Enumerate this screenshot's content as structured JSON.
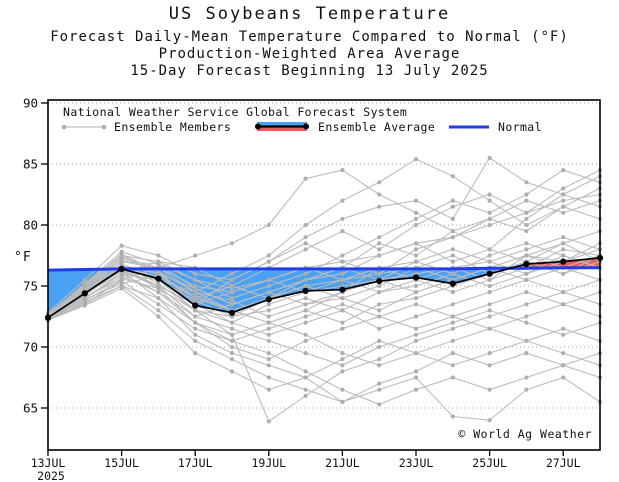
{
  "header": {
    "title": "US Soybeans Temperature",
    "subtitle1": "Forecast Daily-Mean Temperature Compared to Normal (°F)",
    "subtitle2": "Production-Weighted Area Average",
    "subtitle3": "15-Day Forecast Beginning 13 July 2025"
  },
  "legend": {
    "source": "National Weather Service Global Forecast System",
    "ensemble_members": "Ensemble Members",
    "ensemble_average": "Ensemble Average",
    "normal": "Normal"
  },
  "footer": {
    "copyright": "© World Ag Weather"
  },
  "colors": {
    "normal_line": "#1f3de8",
    "cool_fill": "#1e8bf0",
    "warm_fill": "#ef3b3b",
    "average_line": "#000000",
    "member_line": "#bcbcbc",
    "member_dot": "#aeaeae",
    "grid": "#a6a6a6",
    "axis": "#000000"
  },
  "chart_data": {
    "type": "line",
    "title": "US Soybeans Temperature",
    "ylabel": "°F",
    "y_unit": "°F",
    "ylim": [
      61.6,
      90
    ],
    "y_ticks": [
      90,
      85,
      80,
      75,
      70,
      65
    ],
    "x_tick_labels": [
      "13JUL",
      "15JUL",
      "17JUL",
      "19JUL",
      "21JUL",
      "23JUL",
      "25JUL",
      "27JUL"
    ],
    "x_year": "2025",
    "n_days": 16,
    "grid": "horizontal-dotted",
    "legend_position": "top-inside",
    "ensemble_average": [
      72.4,
      74.4,
      76.4,
      75.6,
      73.4,
      72.8,
      73.9,
      74.6,
      74.7,
      75.4,
      75.7,
      75.2,
      76.0,
      76.8,
      77.0,
      77.3
    ],
    "normal": [
      76.3,
      76.35,
      76.4,
      76.4,
      76.4,
      76.4,
      76.4,
      76.4,
      76.4,
      76.4,
      76.4,
      76.4,
      76.45,
      76.45,
      76.5,
      76.5
    ],
    "ensemble_members": [
      [
        72.6,
        74.8,
        77.0,
        76.5,
        75.0,
        74.5,
        75.5,
        76.5,
        77.0,
        77.5,
        78.5,
        79.0,
        80.0,
        81.0,
        82.0,
        82.5
      ],
      [
        72.5,
        75.0,
        77.5,
        76.0,
        74.0,
        75.0,
        76.5,
        78.0,
        79.5,
        78.0,
        80.0,
        81.5,
        82.5,
        81.0,
        83.0,
        84.5
      ],
      [
        72.8,
        75.5,
        78.3,
        77.5,
        76.0,
        75.5,
        77.0,
        79.0,
        80.5,
        81.5,
        82.0,
        80.5,
        85.5,
        83.5,
        82.5,
        81.5
      ],
      [
        72.4,
        74.5,
        76.8,
        75.5,
        74.5,
        76.0,
        77.5,
        80.0,
        82.0,
        83.5,
        85.4,
        84.0,
        82.0,
        80.0,
        81.5,
        83.0
      ],
      [
        72.3,
        74.0,
        76.0,
        77.0,
        75.5,
        74.0,
        75.0,
        76.0,
        77.5,
        79.0,
        80.5,
        82.0,
        81.0,
        82.5,
        84.5,
        83.5
      ],
      [
        72.6,
        75.2,
        77.8,
        76.8,
        74.8,
        73.5,
        74.5,
        75.5,
        76.5,
        78.5,
        77.5,
        79.5,
        80.5,
        82.0,
        81.0,
        82.0
      ],
      [
        72.7,
        74.6,
        76.2,
        75.0,
        73.5,
        75.5,
        77.0,
        78.5,
        77.0,
        76.0,
        78.0,
        79.0,
        80.5,
        79.5,
        81.5,
        80.5
      ],
      [
        72.2,
        73.8,
        75.5,
        76.5,
        77.5,
        78.5,
        80.0,
        83.8,
        84.5,
        82.5,
        81.0,
        79.5,
        78.0,
        80.5,
        82.5,
        84.0
      ],
      [
        72.4,
        74.2,
        76.5,
        75.8,
        74.0,
        73.0,
        74.0,
        75.0,
        75.5,
        76.0,
        76.5,
        75.5,
        76.5,
        77.5,
        77.0,
        78.0
      ],
      [
        72.5,
        74.5,
        76.8,
        75.2,
        73.0,
        72.0,
        73.5,
        74.5,
        75.0,
        75.5,
        76.0,
        76.5,
        77.0,
        76.0,
        77.5,
        76.5
      ],
      [
        72.3,
        74.0,
        75.8,
        74.5,
        72.5,
        73.5,
        74.5,
        73.5,
        74.0,
        75.0,
        76.5,
        77.5,
        76.0,
        77.0,
        76.0,
        77.0
      ],
      [
        72.6,
        74.8,
        77.2,
        76.2,
        74.5,
        73.8,
        72.5,
        73.5,
        74.5,
        76.5,
        75.5,
        74.5,
        75.5,
        76.5,
        78.0,
        77.5
      ],
      [
        72.4,
        74.4,
        76.0,
        75.5,
        73.8,
        72.5,
        73.0,
        74.0,
        73.0,
        74.5,
        75.0,
        76.0,
        77.5,
        78.5,
        77.5,
        76.5
      ],
      [
        72.5,
        74.6,
        77.0,
        76.8,
        75.5,
        74.8,
        75.5,
        74.5,
        75.5,
        76.5,
        77.0,
        76.0,
        75.0,
        76.0,
        77.0,
        78.5
      ],
      [
        72.7,
        75.0,
        77.5,
        77.0,
        76.5,
        75.0,
        74.0,
        75.5,
        76.0,
        77.5,
        78.5,
        77.0,
        78.0,
        77.0,
        78.5,
        79.5
      ],
      [
        72.2,
        73.5,
        75.0,
        74.0,
        72.0,
        71.0,
        72.0,
        73.0,
        74.5,
        75.5,
        74.5,
        75.5,
        76.5,
        75.5,
        76.5,
        75.5
      ],
      [
        72.4,
        74.3,
        76.3,
        75.0,
        73.5,
        74.5,
        75.5,
        76.5,
        75.5,
        74.5,
        75.5,
        76.5,
        75.5,
        77.5,
        76.5,
        77.5
      ],
      [
        72.6,
        74.7,
        76.7,
        76.0,
        74.8,
        73.5,
        74.5,
        75.5,
        76.5,
        75.5,
        77.0,
        78.0,
        77.0,
        78.0,
        79.0,
        78.0
      ],
      [
        72.5,
        74.1,
        75.6,
        74.8,
        73.0,
        72.5,
        74.0,
        75.0,
        74.0,
        73.0,
        74.5,
        75.5,
        76.5,
        77.5,
        78.5,
        77.0
      ],
      [
        72.3,
        73.9,
        75.2,
        75.8,
        74.2,
        73.0,
        72.0,
        73.0,
        72.0,
        73.5,
        74.0,
        75.0,
        76.0,
        77.0,
        76.0,
        77.5
      ],
      [
        72.2,
        73.6,
        75.4,
        73.5,
        71.5,
        70.5,
        71.5,
        72.5,
        73.5,
        72.5,
        73.5,
        72.5,
        73.5,
        74.5,
        73.5,
        74.5
      ],
      [
        72.4,
        74.0,
        76.0,
        74.5,
        72.0,
        70.0,
        69.0,
        70.5,
        71.5,
        72.5,
        71.5,
        72.5,
        71.5,
        72.5,
        73.5,
        72.5
      ],
      [
        72.5,
        74.3,
        76.5,
        75.0,
        72.5,
        71.5,
        70.5,
        69.5,
        68.5,
        70.0,
        71.0,
        72.0,
        73.0,
        72.0,
        71.0,
        72.0
      ],
      [
        72.6,
        74.4,
        76.2,
        74.0,
        71.0,
        69.5,
        68.5,
        67.5,
        69.0,
        70.5,
        69.5,
        68.5,
        69.5,
        70.5,
        71.5,
        70.5
      ],
      [
        72.3,
        73.7,
        75.0,
        73.0,
        70.5,
        69.0,
        67.5,
        66.5,
        65.5,
        67.0,
        68.0,
        69.5,
        68.5,
        69.5,
        68.5,
        69.5
      ],
      [
        72.4,
        74.2,
        76.4,
        74.8,
        72.0,
        70.5,
        69.5,
        68.0,
        66.5,
        65.3,
        66.5,
        67.5,
        66.5,
        67.5,
        68.5,
        67.5
      ],
      [
        72.5,
        74.5,
        76.6,
        75.5,
        73.0,
        71.0,
        63.9,
        66.0,
        68.0,
        69.0,
        70.5,
        71.5,
        72.5,
        73.5,
        74.5,
        73.5
      ],
      [
        72.2,
        73.4,
        74.8,
        72.5,
        69.5,
        68.0,
        66.5,
        67.5,
        65.5,
        66.5,
        67.5,
        64.3,
        64.0,
        66.5,
        67.5,
        65.5
      ],
      [
        72.6,
        74.9,
        77.3,
        76.5,
        74.5,
        73.0,
        72.0,
        71.0,
        69.5,
        68.5,
        69.5,
        70.5,
        71.5,
        70.5,
        69.5,
        68.5
      ],
      [
        72.7,
        75.1,
        77.6,
        76.2,
        73.5,
        72.0,
        71.0,
        72.0,
        73.0,
        71.5,
        72.5,
        73.5,
        74.5,
        75.5,
        74.5,
        75.5
      ]
    ]
  }
}
